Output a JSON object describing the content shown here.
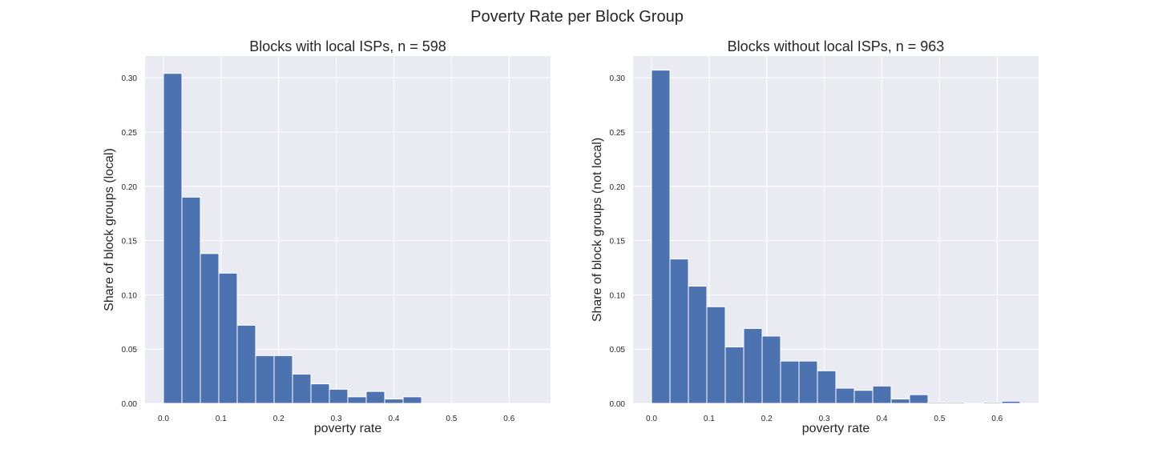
{
  "figure": {
    "title": "Poverty Rate per Block Group"
  },
  "style": {
    "bar_color": "#4c72b0",
    "background": "#eaeaf2",
    "grid": "#ffffff"
  },
  "chart_data": [
    {
      "type": "bar",
      "title": "Blocks with local ISPs, n = 598",
      "xlabel": "poverty rate",
      "ylabel": "Share of block groups (local)",
      "xlim": [
        -0.032,
        0.672
      ],
      "ylim": [
        0,
        0.32
      ],
      "grid": true,
      "xticks": [
        0.0,
        0.1,
        0.2,
        0.3,
        0.4,
        0.5,
        0.6
      ],
      "xtick_labels": [
        "0.0",
        "0.1",
        "0.2",
        "0.3",
        "0.4",
        "0.5",
        "0.6"
      ],
      "yticks": [
        0.0,
        0.05,
        0.1,
        0.15,
        0.2,
        0.25,
        0.3
      ],
      "ytick_labels": [
        "0.00",
        "0.05",
        "0.10",
        "0.15",
        "0.20",
        "0.25",
        "0.30"
      ],
      "bin_start": 0.0,
      "bin_width": 0.032,
      "values": [
        0.304,
        0.19,
        0.138,
        0.12,
        0.072,
        0.044,
        0.044,
        0.027,
        0.018,
        0.013,
        0.006,
        0.011,
        0.004,
        0.006,
        0,
        0,
        0,
        0,
        0,
        0
      ]
    },
    {
      "type": "bar",
      "title": "Blocks without local ISPs, n = 963",
      "xlabel": "poverty rate",
      "ylabel": "Share of block groups (not local)",
      "xlim": [
        -0.032,
        0.672
      ],
      "ylim": [
        0,
        0.32
      ],
      "grid": true,
      "xticks": [
        0.0,
        0.1,
        0.2,
        0.3,
        0.4,
        0.5,
        0.6
      ],
      "xtick_labels": [
        "0.0",
        "0.1",
        "0.2",
        "0.3",
        "0.4",
        "0.5",
        "0.6"
      ],
      "yticks": [
        0.0,
        0.05,
        0.1,
        0.15,
        0.2,
        0.25,
        0.3
      ],
      "ytick_labels": [
        "0.00",
        "0.05",
        "0.10",
        "0.15",
        "0.20",
        "0.25",
        "0.30"
      ],
      "bin_start": 0.0,
      "bin_width": 0.032,
      "values": [
        0.307,
        0.133,
        0.108,
        0.089,
        0.052,
        0.069,
        0.062,
        0.039,
        0.039,
        0.03,
        0.014,
        0.012,
        0.016,
        0.004,
        0.008,
        0.001,
        0.001,
        0,
        0.001,
        0.002
      ]
    }
  ]
}
